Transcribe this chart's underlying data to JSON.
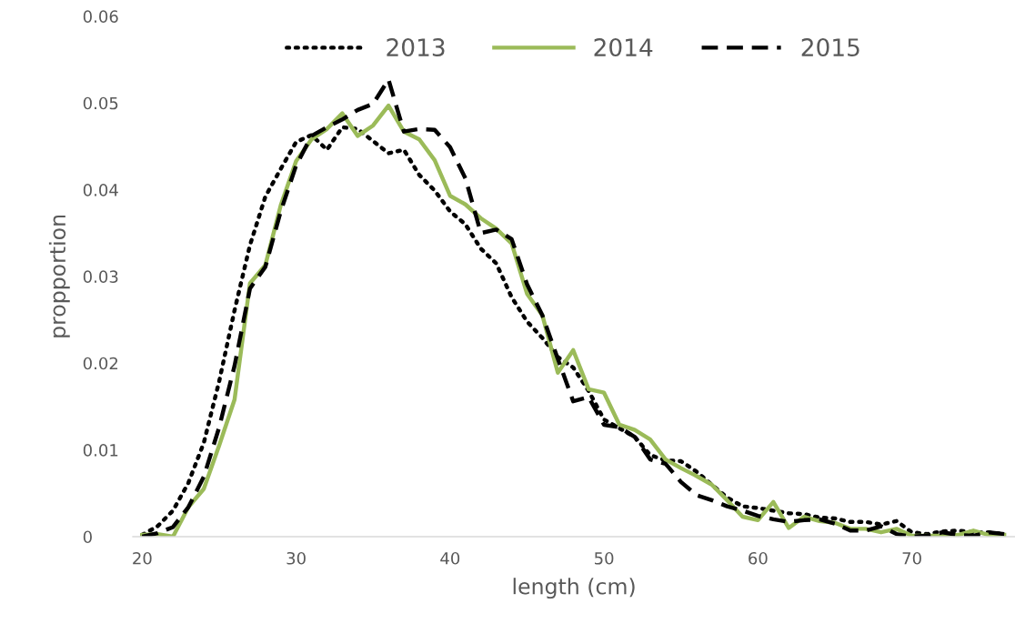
{
  "chart_data": {
    "type": "line",
    "xlabel": "length (cm)",
    "ylabel": "propportion",
    "x": [
      20,
      21,
      22,
      23,
      24,
      25,
      26,
      27,
      28,
      29,
      30,
      31,
      32,
      33,
      34,
      35,
      36,
      37,
      38,
      39,
      40,
      41,
      42,
      43,
      44,
      45,
      46,
      47,
      48,
      49,
      50,
      51,
      52,
      53,
      54,
      55,
      56,
      57,
      58,
      59,
      60,
      61,
      62,
      63,
      64,
      65,
      66,
      67,
      68,
      69,
      70,
      71,
      72,
      73,
      74,
      75,
      76
    ],
    "series": [
      {
        "name": "2013",
        "color": "#000000",
        "line_style": "dotted",
        "values": [
          0.0002,
          0.0012,
          0.003,
          0.0062,
          0.0108,
          0.0179,
          0.0261,
          0.0336,
          0.0392,
          0.0424,
          0.0455,
          0.0463,
          0.0446,
          0.0472,
          0.047,
          0.0456,
          0.0442,
          0.0446,
          0.0417,
          0.0399,
          0.0375,
          0.036,
          0.0332,
          0.0315,
          0.0276,
          0.0248,
          0.0229,
          0.0207,
          0.0195,
          0.0168,
          0.0135,
          0.0125,
          0.0115,
          0.0094,
          0.0088,
          0.0087,
          0.0075,
          0.006,
          0.0045,
          0.0035,
          0.0033,
          0.003,
          0.0027,
          0.0026,
          0.0022,
          0.0021,
          0.0017,
          0.0017,
          0.0014,
          0.0018,
          0.0005,
          0.0003,
          0.0006,
          0.0007,
          0.0005,
          0.0005,
          0.0003
        ]
      },
      {
        "name": "2014",
        "color": "#9bbb59",
        "line_style": "solid",
        "values": [
          0.0002,
          0.0003,
          0,
          0.0034,
          0.0055,
          0.0105,
          0.0158,
          0.0292,
          0.0313,
          0.0382,
          0.0433,
          0.0458,
          0.047,
          0.0488,
          0.0462,
          0.0474,
          0.0497,
          0.0467,
          0.0458,
          0.0434,
          0.0393,
          0.0383,
          0.0367,
          0.0355,
          0.0338,
          0.028,
          0.0255,
          0.0189,
          0.0215,
          0.017,
          0.0166,
          0.0129,
          0.0123,
          0.0112,
          0.0089,
          0.0079,
          0.007,
          0.006,
          0.0042,
          0.0023,
          0.0019,
          0.004,
          0.001,
          0.0023,
          0.0018,
          0.0016,
          0.0009,
          0.0009,
          0.0005,
          0.0009,
          0.0001,
          0.0001,
          0.0001,
          0.0002,
          0.0007,
          0.0002,
          0.0002
        ]
      },
      {
        "name": "2015",
        "color": "#000000",
        "line_style": "dashed",
        "values": [
          0,
          0.0004,
          0.0011,
          0.0034,
          0.0069,
          0.0126,
          0.0197,
          0.0286,
          0.0311,
          0.0375,
          0.0428,
          0.0462,
          0.0472,
          0.0481,
          0.0492,
          0.0499,
          0.0527,
          0.0467,
          0.047,
          0.0469,
          0.0449,
          0.0413,
          0.035,
          0.0354,
          0.0343,
          0.0291,
          0.0255,
          0.0205,
          0.0156,
          0.0161,
          0.0129,
          0.0126,
          0.0115,
          0.0089,
          0.0084,
          0.0063,
          0.0048,
          0.0042,
          0.0035,
          0.003,
          0.0024,
          0.002,
          0.0017,
          0.0019,
          0.002,
          0.0015,
          0.0007,
          0.0007,
          0.0012,
          0.0003,
          0,
          0.0001,
          0.0005,
          0.0002,
          0.0001,
          0.0005,
          0.0003
        ]
      }
    ],
    "xlim": [
      19.4,
      76.7
    ],
    "xticks": [
      20,
      30,
      40,
      50,
      60,
      70
    ],
    "ylim": [
      0,
      0.06
    ],
    "yticks": [
      0,
      0.01,
      0.02,
      0.03,
      0.04,
      0.05,
      0.06
    ],
    "grid": false,
    "legend": "top",
    "marker": "none"
  }
}
